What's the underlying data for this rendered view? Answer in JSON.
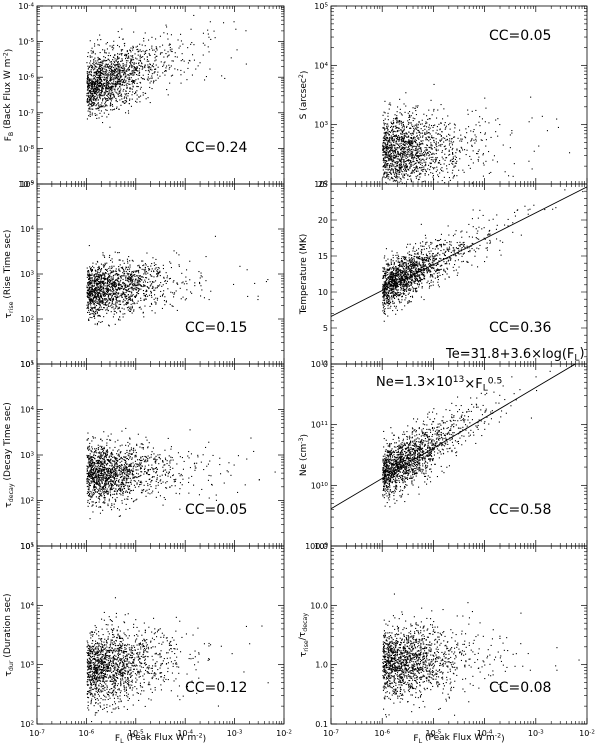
{
  "chart_data": [
    {
      "type": "scatter",
      "ylabel": "F_B (Back Flux W m^-2)",
      "xscale": "log",
      "yscale": "log",
      "xlim": [
        1e-07,
        0.01
      ],
      "ylim": [
        1e-09,
        0.0001
      ],
      "y_ticks": [
        "10^-9",
        "10^-8",
        "10^-7",
        "10^-6",
        "10^-5",
        "10^-4"
      ],
      "series": [
        {
          "distribution": {
            "y_center_log": -6.25,
            "y_spread_dex": 0.42,
            "y_slope": 0.45,
            "n": 1500
          }
        }
      ],
      "annotation": "CC=0.24"
    },
    {
      "type": "scatter",
      "ylabel": "S (arcsec^2)",
      "xscale": "log",
      "yscale": "log",
      "xlim": [
        1e-07,
        0.01
      ],
      "ylim": [
        100.0,
        100000.0
      ],
      "y_ticks": [
        "10^2",
        "10^3",
        "10^4",
        "10^5"
      ],
      "series": [
        {
          "distribution": {
            "y_center_log": 2.55,
            "y_spread_dex": 0.32,
            "y_slope": 0.05,
            "n": 1500
          }
        }
      ],
      "annotation": "CC=0.05"
    },
    {
      "type": "scatter",
      "ylabel": "τ_rise (Rise Time sec)",
      "xscale": "log",
      "yscale": "log",
      "xlim": [
        1e-07,
        0.01
      ],
      "ylim": [
        10.0,
        100000.0
      ],
      "y_ticks": [
        "10^1",
        "10^2",
        "10^3",
        "10^4",
        "10^5"
      ],
      "series": [
        {
          "distribution": {
            "y_center_log": 2.65,
            "y_spread_dex": 0.3,
            "y_slope": 0.1,
            "n": 1500
          }
        }
      ],
      "annotation": "CC=0.15"
    },
    {
      "type": "scatter",
      "ylabel": "Temperature (MK)",
      "xscale": "log",
      "yscale": "linear",
      "xlim": [
        1e-07,
        0.01
      ],
      "ylim": [
        0,
        25
      ],
      "y_ticks": [
        "0",
        "5",
        "10",
        "15",
        "20",
        "25"
      ],
      "fit_line": {
        "equation": "Te=31.8+3.6×log(F_L)",
        "intercept": 31.8,
        "slope": 3.6
      },
      "series": [
        {
          "distribution": {
            "y_center_lin": 10.6,
            "y_spread_lin": 1.6,
            "y_slope": 3.6,
            "n": 1500
          }
        }
      ],
      "annotation": "CC=0.36"
    },
    {
      "type": "scatter",
      "ylabel": "τ_decay (Decay Time sec)",
      "xscale": "log",
      "yscale": "log",
      "xlim": [
        1e-07,
        0.01
      ],
      "ylim": [
        10.0,
        100000.0
      ],
      "y_ticks": [
        "10^1",
        "10^2",
        "10^3",
        "10^4",
        "10^5"
      ],
      "series": [
        {
          "distribution": {
            "y_center_log": 2.6,
            "y_spread_dex": 0.32,
            "y_slope": 0.04,
            "n": 1500
          }
        }
      ],
      "annotation": "CC=0.05"
    },
    {
      "type": "scatter",
      "ylabel": "Ne (cm^-3)",
      "xscale": "log",
      "yscale": "log",
      "xlim": [
        1e-07,
        0.01
      ],
      "ylim": [
        1000000000.0,
        1000000000000.0
      ],
      "y_ticks": [
        "10^9",
        "10^10",
        "10^11",
        "10^12"
      ],
      "fit_line": {
        "equation": "Ne=1.3×10^13×F_L^0.5",
        "coefficient": 13000000000000.0,
        "exponent": 0.5
      },
      "series": [
        {
          "distribution": {
            "y_center_log": 10.2,
            "y_spread_dex": 0.22,
            "y_slope": 0.5,
            "n": 1500
          }
        }
      ],
      "annotation": "CC=0.58"
    },
    {
      "type": "scatter",
      "ylabel": "τ_dur (Duration sec)",
      "xlabel": "F_L (Peak Flux W m^-2)",
      "xscale": "log",
      "yscale": "log",
      "xlim": [
        1e-07,
        0.01
      ],
      "ylim": [
        100.0,
        100000.0
      ],
      "x_ticks": [
        "10^-7",
        "10^-6",
        "10^-5",
        "10^-4",
        "10^-3",
        "10^-2"
      ],
      "y_ticks": [
        "10^2",
        "10^3",
        "10^4",
        "10^5"
      ],
      "series": [
        {
          "distribution": {
            "y_center_log": 2.95,
            "y_spread_dex": 0.3,
            "y_slope": 0.08,
            "n": 1500
          }
        }
      ],
      "annotation": "CC=0.12"
    },
    {
      "type": "scatter",
      "ylabel": "τ_rise/τ_decay",
      "xlabel": "F_L (Peak Flux W m^-2)",
      "xscale": "log",
      "yscale": "log",
      "xlim": [
        1e-07,
        0.01
      ],
      "ylim": [
        0.1,
        100
      ],
      "x_ticks": [
        "10^-7",
        "10^-6",
        "10^-5",
        "10^-4",
        "10^-3",
        "10^-2"
      ],
      "y_ticks": [
        "0.1",
        "1.0",
        "10.0",
        "100.0"
      ],
      "series": [
        {
          "distribution": {
            "y_center_log": 0.05,
            "y_spread_dex": 0.3,
            "y_slope": 0.03,
            "n": 1500
          }
        }
      ],
      "annotation": "CC=0.08"
    }
  ]
}
